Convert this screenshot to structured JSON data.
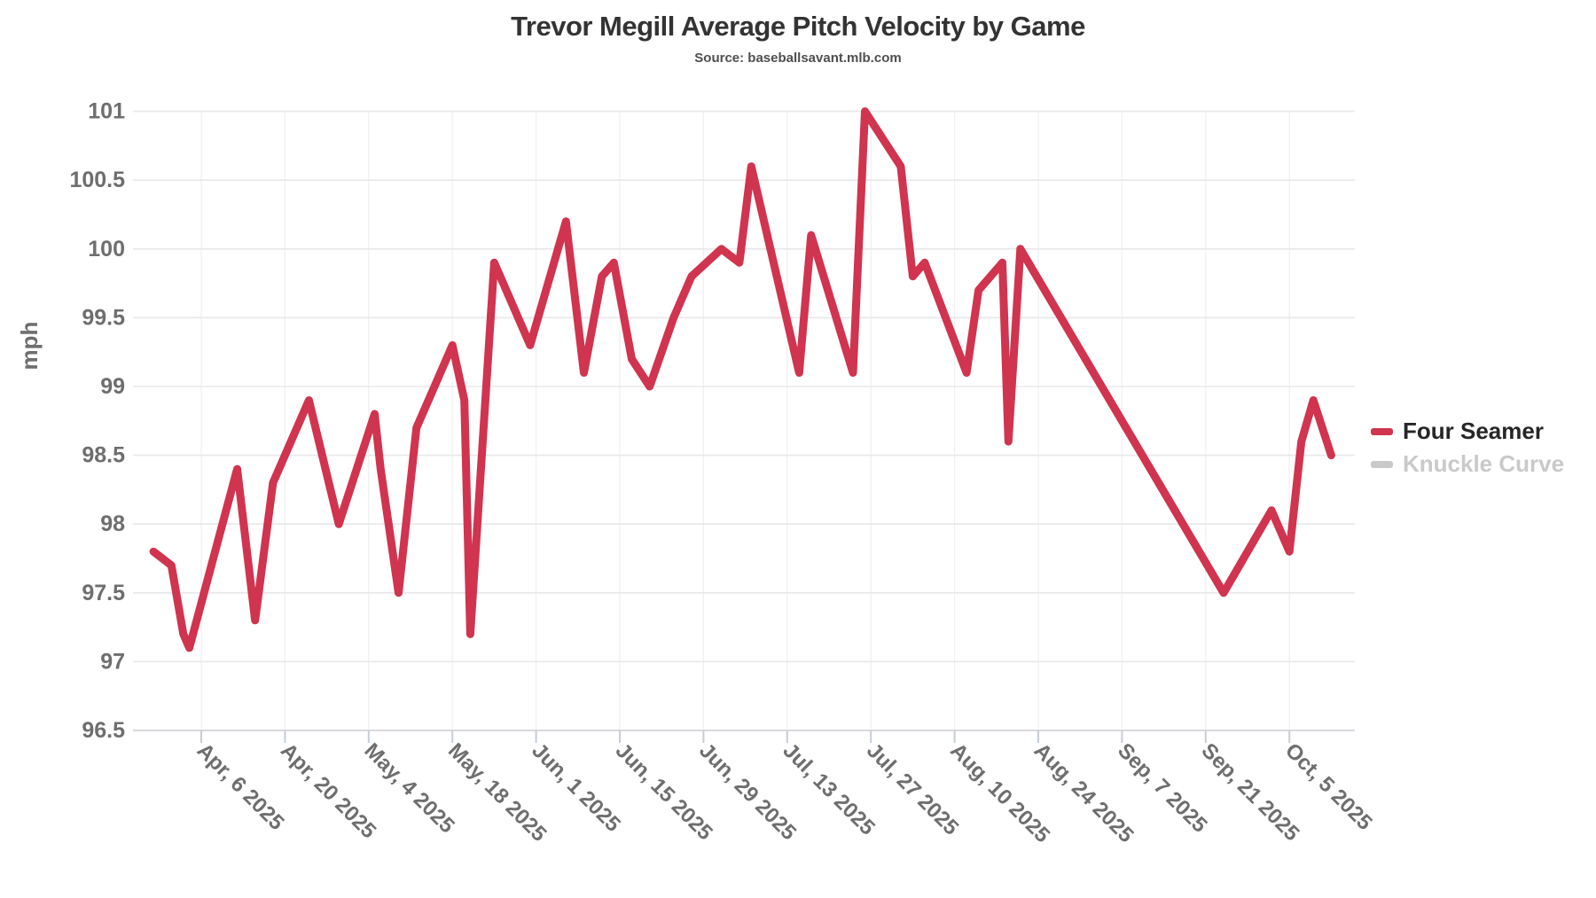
{
  "title": "Trevor Megill Average Pitch Velocity by Game",
  "subtitle": "Source: baseballsavant.mlb.com",
  "y_axis": {
    "label": "mph",
    "ticks": [
      "101",
      "100.5",
      "100",
      "99.5",
      "99",
      "98.5",
      "98",
      "97.5",
      "97",
      "96.5"
    ]
  },
  "x_axis": {
    "ticks": [
      "Apr, 6 2025",
      "Apr, 20 2025",
      "May, 4 2025",
      "May, 18 2025",
      "Jun, 1 2025",
      "Jun, 15 2025",
      "Jun, 29 2025",
      "Jul, 13 2025",
      "Jul, 27 2025",
      "Aug, 10 2025",
      "Aug, 24 2025",
      "Sep, 7 2025",
      "Sep, 21 2025",
      "Oct, 5 2025"
    ]
  },
  "legend": {
    "items": [
      {
        "label": "Four Seamer",
        "color": "#d0344f",
        "text_color": "#262626",
        "active": true
      },
      {
        "label": "Knuckle Curve",
        "color": "#c9c9c9",
        "text_color": "#c9c9c9",
        "active": false
      }
    ]
  },
  "chart_data": {
    "type": "line",
    "title": "Trevor Megill Average Pitch Velocity by Game",
    "subtitle": "Source: baseballsavant.mlb.com",
    "xlabel": "",
    "ylabel": "mph",
    "ylim": [
      96.5,
      101
    ],
    "y_tick_step": 0.5,
    "grid": true,
    "legend_position": "right",
    "x_tick_labels": [
      "Apr, 6 2025",
      "Apr, 20 2025",
      "May, 4 2025",
      "May, 18 2025",
      "Jun, 1 2025",
      "Jun, 15 2025",
      "Jun, 29 2025",
      "Jul, 13 2025",
      "Jul, 27 2025",
      "Aug, 10 2025",
      "Aug, 24 2025",
      "Sep, 7 2025",
      "Sep, 21 2025",
      "Oct, 5 2025"
    ],
    "series": [
      {
        "name": "Four Seamer",
        "color": "#d0344f",
        "points": [
          {
            "date": "Mar 29 2025",
            "mph": 97.8
          },
          {
            "date": "Apr 1 2025",
            "mph": 97.7
          },
          {
            "date": "Apr 3 2025",
            "mph": 97.2
          },
          {
            "date": "Apr 4 2025",
            "mph": 97.1
          },
          {
            "date": "Apr 12 2025",
            "mph": 98.4
          },
          {
            "date": "Apr 15 2025",
            "mph": 97.3
          },
          {
            "date": "Apr 18 2025",
            "mph": 98.3
          },
          {
            "date": "Apr 24 2025",
            "mph": 98.9
          },
          {
            "date": "Apr 29 2025",
            "mph": 98.0
          },
          {
            "date": "May 5 2025",
            "mph": 98.8
          },
          {
            "date": "May 6 2025",
            "mph": 98.4
          },
          {
            "date": "May 9 2025",
            "mph": 97.5
          },
          {
            "date": "May 12 2025",
            "mph": 98.7
          },
          {
            "date": "May 15 2025",
            "mph": 99.0
          },
          {
            "date": "May 18 2025",
            "mph": 99.3
          },
          {
            "date": "May 20 2025",
            "mph": 98.9
          },
          {
            "date": "May 21 2025",
            "mph": 97.2
          },
          {
            "date": "May 25 2025",
            "mph": 99.9
          },
          {
            "date": "May 31 2025",
            "mph": 99.3
          },
          {
            "date": "Jun 6 2025",
            "mph": 100.2
          },
          {
            "date": "Jun 9 2025",
            "mph": 99.1
          },
          {
            "date": "Jun 12 2025",
            "mph": 99.8
          },
          {
            "date": "Jun 14 2025",
            "mph": 99.9
          },
          {
            "date": "Jun 17 2025",
            "mph": 99.2
          },
          {
            "date": "Jun 20 2025",
            "mph": 99.0
          },
          {
            "date": "Jun 24 2025",
            "mph": 99.5
          },
          {
            "date": "Jun 27 2025",
            "mph": 99.8
          },
          {
            "date": "Jul 2 2025",
            "mph": 100.0
          },
          {
            "date": "Jul 5 2025",
            "mph": 99.9
          },
          {
            "date": "Jul 7 2025",
            "mph": 100.6
          },
          {
            "date": "Jul 15 2025",
            "mph": 99.1
          },
          {
            "date": "Jul 17 2025",
            "mph": 100.1
          },
          {
            "date": "Jul 24 2025",
            "mph": 99.1
          },
          {
            "date": "Jul 26 2025",
            "mph": 101.0
          },
          {
            "date": "Aug 1 2025",
            "mph": 100.6
          },
          {
            "date": "Aug 3 2025",
            "mph": 99.8
          },
          {
            "date": "Aug 5 2025",
            "mph": 99.9
          },
          {
            "date": "Aug 12 2025",
            "mph": 99.1
          },
          {
            "date": "Aug 14 2025",
            "mph": 99.7
          },
          {
            "date": "Aug 18 2025",
            "mph": 99.9
          },
          {
            "date": "Aug 19 2025",
            "mph": 98.6
          },
          {
            "date": "Aug 21 2025",
            "mph": 100.0
          },
          {
            "date": "Sep 24 2025",
            "mph": 97.5
          },
          {
            "date": "Oct 2 2025",
            "mph": 98.1
          },
          {
            "date": "Oct 5 2025",
            "mph": 97.8
          },
          {
            "date": "Oct 7 2025",
            "mph": 98.6
          },
          {
            "date": "Oct 9 2025",
            "mph": 98.9
          },
          {
            "date": "Oct 12 2025",
            "mph": 98.5
          }
        ]
      },
      {
        "name": "Knuckle Curve",
        "color": "#c9c9c9",
        "points": []
      }
    ]
  }
}
